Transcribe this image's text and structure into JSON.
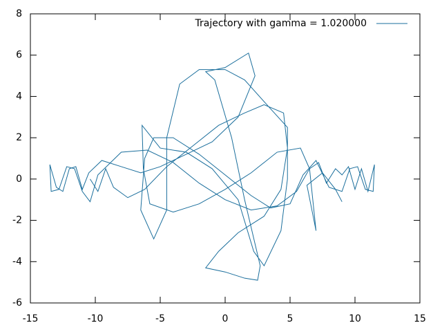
{
  "chart_data": {
    "type": "line",
    "xlim": [
      -15,
      15
    ],
    "xticks": [
      -15,
      -10,
      -5,
      0,
      5,
      10,
      15
    ],
    "ylim": [
      -6,
      8
    ],
    "yticks": [
      -6,
      -4,
      -2,
      0,
      2,
      4,
      6,
      8
    ],
    "legend": "top-right",
    "grid": false,
    "series": [
      {
        "name": "Trajectory with gamma = 1.020000",
        "color": "#1a6e9c",
        "x": [
          -10.4,
          -9.8,
          -9.2,
          -8.6,
          -7.5,
          -6.2,
          -4.5,
          -2.5,
          -0.5,
          1.5,
          3,
          4.5,
          4.8,
          4.3,
          3,
          1,
          -0.5,
          -1.5,
          0,
          1.5,
          2.5,
          2.7,
          1.5,
          0.5,
          -0.8,
          -1.5,
          0,
          1.8,
          2.3,
          1,
          -1,
          -3,
          -5,
          -6.5,
          -8,
          -9.5,
          -10.5,
          -11,
          -11.5,
          -12,
          -12.5,
          -13,
          -13.5,
          -13.4,
          -12.8,
          -12.2,
          -11.6,
          -11,
          -10.4,
          -9.8,
          -8,
          -6,
          -4,
          -2,
          0,
          2,
          4,
          5.5,
          6.5,
          7.2,
          7.8,
          8.5,
          9,
          9.5,
          10,
          10.5,
          11,
          11.5,
          11.4,
          10.8,
          10.2,
          9.6,
          9,
          8,
          7,
          6,
          5,
          3.5,
          2,
          0,
          -2,
          -4,
          -5.5,
          -6.2,
          -6.5,
          -5.5,
          -4.5,
          -4.5,
          -3.5,
          -2,
          0,
          1.5,
          3.5,
          4.8,
          4.8,
          4.3,
          3,
          2.2,
          1,
          -1,
          -3,
          -5,
          -6.4,
          -6.3,
          -5.8,
          -4,
          -2,
          0,
          2,
          4,
          5.8,
          6.5,
          7,
          6.3,
          7.5,
          8.5,
          9
        ],
        "values": [
          0,
          -0.6,
          0.5,
          -0.4,
          -0.9,
          -0.5,
          0.6,
          1.6,
          2.6,
          3.2,
          3.6,
          3.2,
          1.5,
          -0.5,
          -1.8,
          -2.6,
          -3.5,
          -4.3,
          -4.5,
          -4.8,
          -4.9,
          -4.2,
          -1,
          2,
          4.8,
          5.2,
          5.4,
          6.1,
          5,
          3,
          1.8,
          1.2,
          0.6,
          0.3,
          0.6,
          0.9,
          0.3,
          -0.5,
          0.6,
          0.5,
          -0.6,
          -0.4,
          0.7,
          -0.6,
          -0.5,
          0.6,
          0.5,
          -0.6,
          -1.1,
          0.2,
          1.3,
          1.4,
          0.8,
          -0.2,
          -1,
          -1.5,
          -1.3,
          -0.6,
          0.5,
          0.8,
          -0.2,
          0.5,
          0.2,
          0.6,
          -0.5,
          0.5,
          -0.6,
          0.7,
          -0.6,
          -0.5,
          0.6,
          0.5,
          -0.6,
          -0.4,
          0.9,
          0.2,
          -1.2,
          -1.4,
          -0.8,
          0.2,
          1.2,
          2,
          2,
          1,
          -1.5,
          -2.9,
          -1.5,
          2,
          4.6,
          5.3,
          5.3,
          4.8,
          3.4,
          2.5,
          0,
          -2.5,
          -4.2,
          -3.5,
          -1,
          0.5,
          1.3,
          1.5,
          2.6,
          0.5,
          -1.2,
          -1.6,
          -1.2,
          -0.5,
          0.3,
          1.3,
          1.5,
          0.5,
          -2.5,
          -0.3,
          0.3,
          -0.5,
          -1.1
        ]
      }
    ]
  }
}
